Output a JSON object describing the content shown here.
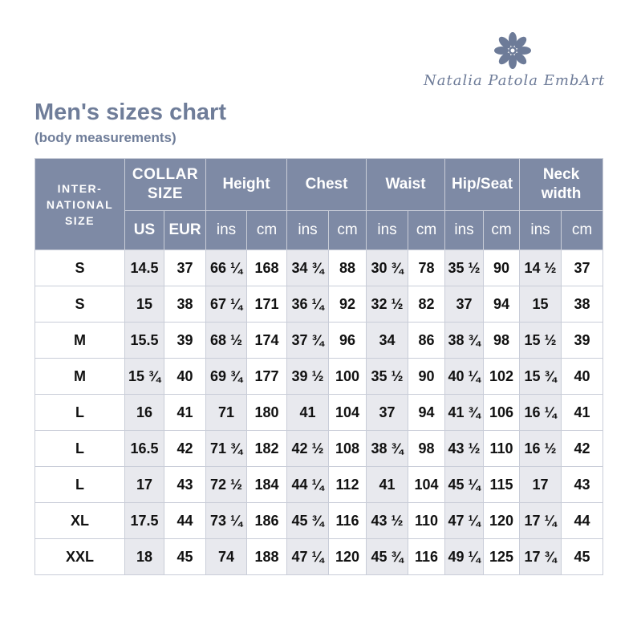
{
  "header": {
    "brand": "Natalia Patola EmbArt",
    "title": "Men's sizes chart",
    "subtitle": "(body measurements)"
  },
  "table": {
    "corner": [
      "INTER-",
      "NATIONAL",
      "SIZE"
    ],
    "groups": [
      [
        "COLLAR",
        "SIZE"
      ],
      [
        "Height"
      ],
      [
        "Chest"
      ],
      [
        "Waist"
      ],
      [
        "Hip/Seat"
      ],
      [
        "Neck",
        "width"
      ]
    ],
    "subheaders": [
      "US",
      "EUR",
      "ins",
      "cm",
      "ins",
      "cm",
      "ins",
      "cm",
      "ins",
      "cm",
      "ins",
      "cm"
    ],
    "rows": [
      [
        "S",
        "14.5",
        "37",
        "66 ¼",
        "168",
        "34 ¾",
        "88",
        "30 ¾",
        "78",
        "35 ½",
        "90",
        "14 ½",
        "37"
      ],
      [
        "S",
        "15",
        "38",
        "67 ¼",
        "171",
        "36 ¼",
        "92",
        "32 ½",
        "82",
        "37",
        "94",
        "15",
        "38"
      ],
      [
        "M",
        "15.5",
        "39",
        "68 ½",
        "174",
        "37 ¾",
        "96",
        "34",
        "86",
        "38 ¾",
        "98",
        "15 ½",
        "39"
      ],
      [
        "M",
        "15 ¾",
        "40",
        "69 ¾",
        "177",
        "39 ½",
        "100",
        "35 ½",
        "90",
        "40 ¼",
        "102",
        "15 ¾",
        "40"
      ],
      [
        "L",
        "16",
        "41",
        "71",
        "180",
        "41",
        "104",
        "37",
        "94",
        "41 ¾",
        "106",
        "16 ¼",
        "41"
      ],
      [
        "L",
        "16.5",
        "42",
        "71 ¾",
        "182",
        "42 ½",
        "108",
        "38 ¾",
        "98",
        "43 ½",
        "110",
        "16 ½",
        "42"
      ],
      [
        "L",
        "17",
        "43",
        "72 ½",
        "184",
        "44 ¼",
        "112",
        "41",
        "104",
        "45 ¼",
        "115",
        "17",
        "43"
      ],
      [
        "XL",
        "17.5",
        "44",
        "73 ¼",
        "186",
        "45 ¾",
        "116",
        "43 ½",
        "110",
        "47 ¼",
        "120",
        "17 ¼",
        "44"
      ],
      [
        "XXL",
        "18",
        "45",
        "74",
        "188",
        "47 ¼",
        "120",
        "45 ¾",
        "116",
        "49 ¼",
        "125",
        "17 ¾",
        "45"
      ]
    ]
  }
}
